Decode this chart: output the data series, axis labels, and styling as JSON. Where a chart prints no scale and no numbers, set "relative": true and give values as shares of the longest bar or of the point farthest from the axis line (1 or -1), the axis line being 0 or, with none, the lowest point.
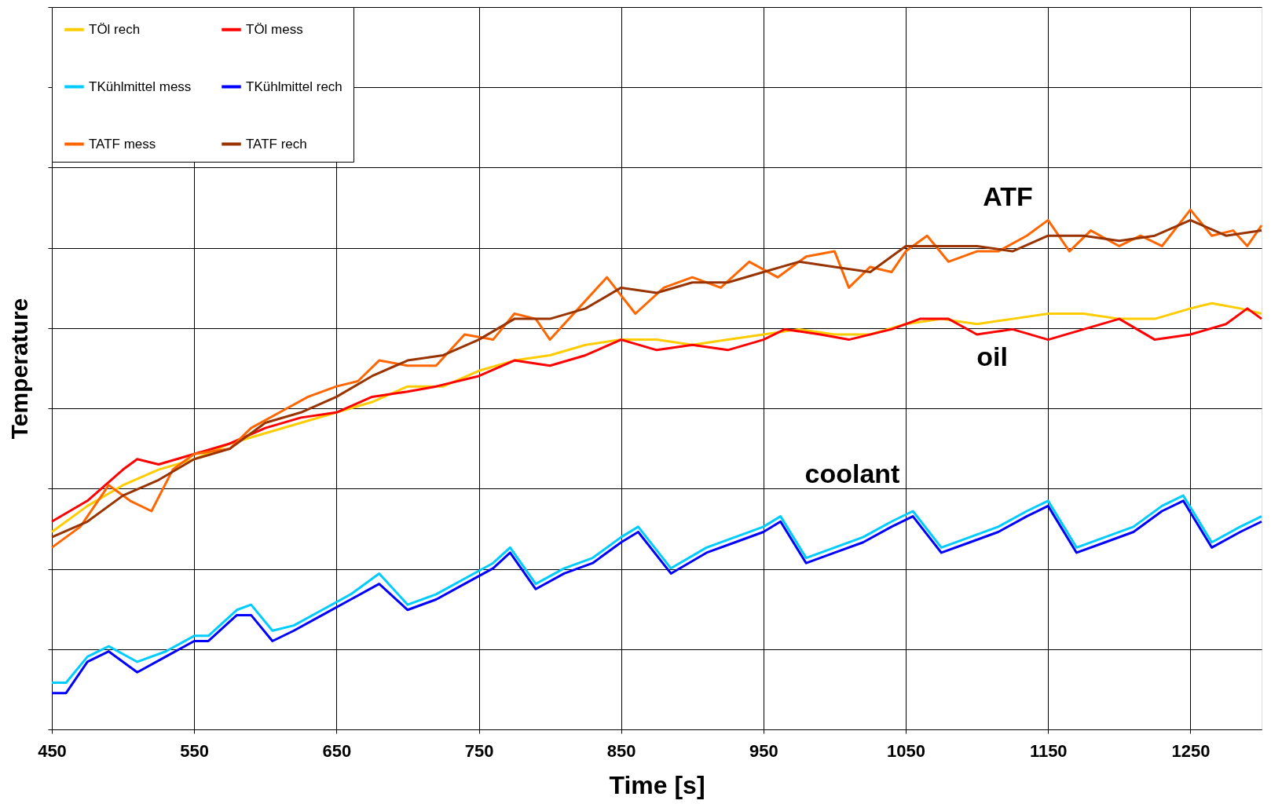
{
  "chart_data": {
    "type": "line",
    "relative": true,
    "xlabel": "Time [s]",
    "ylabel": "Temperature",
    "xlim": [
      450,
      1300
    ],
    "xticks": [
      450,
      550,
      650,
      750,
      850,
      950,
      {
        "value": 1050,
        "label": "1050"
      },
      {
        "value": 1150,
        "label": "1150"
      },
      {
        "value": 1250,
        "label": "1250"
      }
    ],
    "grid": true,
    "legend": "top left",
    "tick_labels": "x",
    "line_style": "solid",
    "marker": "none",
    "series": [
      {
        "name": "TÖl rech",
        "color": "#ffcc00",
        "x": [
          450,
          475,
          500,
          525,
          550,
          575,
          600,
          625,
          650,
          675,
          700,
          725,
          750,
          775,
          800,
          825,
          850,
          875,
          900,
          925,
          950,
          975,
          1000,
          1025,
          1050,
          1075,
          1100,
          1125,
          1150,
          1175,
          1200,
          1225,
          1250,
          1265,
          1285,
          1300
        ],
        "values": [
          0.38,
          0.43,
          0.47,
          0.5,
          0.52,
          0.55,
          0.57,
          0.59,
          0.61,
          0.63,
          0.66,
          0.66,
          0.69,
          0.71,
          0.72,
          0.74,
          0.75,
          0.75,
          0.74,
          0.75,
          0.76,
          0.77,
          0.76,
          0.76,
          0.78,
          0.79,
          0.78,
          0.79,
          0.8,
          0.8,
          0.79,
          0.79,
          0.81,
          0.82,
          0.81,
          0.8
        ]
      },
      {
        "name": "TÖl mess",
        "color": "#ff0000",
        "x": [
          450,
          475,
          500,
          510,
          525,
          550,
          575,
          600,
          625,
          650,
          675,
          700,
          720,
          750,
          775,
          800,
          825,
          850,
          875,
          900,
          925,
          950,
          965,
          990,
          1010,
          1040,
          1060,
          1080,
          1100,
          1125,
          1150,
          1175,
          1200,
          1225,
          1250,
          1275,
          1290,
          1300
        ],
        "values": [
          0.4,
          0.44,
          0.5,
          0.52,
          0.51,
          0.53,
          0.55,
          0.58,
          0.6,
          0.61,
          0.64,
          0.65,
          0.66,
          0.68,
          0.71,
          0.7,
          0.72,
          0.75,
          0.73,
          0.74,
          0.73,
          0.75,
          0.77,
          0.76,
          0.75,
          0.77,
          0.79,
          0.79,
          0.76,
          0.77,
          0.75,
          0.77,
          0.79,
          0.75,
          0.76,
          0.78,
          0.81,
          0.79
        ]
      },
      {
        "name": "TKühlmittel mess",
        "color": "#00ccff",
        "x": [
          450,
          460,
          475,
          490,
          510,
          530,
          550,
          560,
          580,
          590,
          605,
          620,
          640,
          660,
          680,
          700,
          720,
          740,
          760,
          772,
          790,
          810,
          830,
          850,
          862,
          885,
          910,
          930,
          950,
          962,
          980,
          1000,
          1020,
          1040,
          1055,
          1075,
          1095,
          1115,
          1135,
          1150,
          1170,
          1190,
          1210,
          1230,
          1245,
          1265,
          1285,
          1300
        ],
        "values": [
          0.09,
          0.09,
          0.14,
          0.16,
          0.13,
          0.15,
          0.18,
          0.18,
          0.23,
          0.24,
          0.19,
          0.2,
          0.23,
          0.26,
          0.3,
          0.24,
          0.26,
          0.29,
          0.32,
          0.35,
          0.28,
          0.31,
          0.33,
          0.37,
          0.39,
          0.31,
          0.35,
          0.37,
          0.39,
          0.41,
          0.33,
          0.35,
          0.37,
          0.4,
          0.42,
          0.35,
          0.37,
          0.39,
          0.42,
          0.44,
          0.35,
          0.37,
          0.39,
          0.43,
          0.45,
          0.36,
          0.39,
          0.41
        ]
      },
      {
        "name": "TKühlmittel rech",
        "color": "#0000ff",
        "x": [
          450,
          460,
          475,
          490,
          510,
          530,
          550,
          560,
          580,
          590,
          605,
          620,
          640,
          660,
          680,
          700,
          720,
          740,
          760,
          772,
          790,
          810,
          830,
          850,
          862,
          885,
          910,
          930,
          950,
          962,
          980,
          1000,
          1020,
          1040,
          1055,
          1075,
          1095,
          1115,
          1135,
          1150,
          1170,
          1190,
          1210,
          1230,
          1245,
          1265,
          1285,
          1300
        ],
        "values": [
          0.07,
          0.07,
          0.13,
          0.15,
          0.11,
          0.14,
          0.17,
          0.17,
          0.22,
          0.22,
          0.17,
          0.19,
          0.22,
          0.25,
          0.28,
          0.23,
          0.25,
          0.28,
          0.31,
          0.34,
          0.27,
          0.3,
          0.32,
          0.36,
          0.38,
          0.3,
          0.34,
          0.36,
          0.38,
          0.4,
          0.32,
          0.34,
          0.36,
          0.39,
          0.41,
          0.34,
          0.36,
          0.38,
          0.41,
          0.43,
          0.34,
          0.36,
          0.38,
          0.42,
          0.44,
          0.35,
          0.38,
          0.4
        ]
      },
      {
        "name": "TATF mess",
        "color": "#ff6600",
        "x": [
          450,
          470,
          490,
          505,
          520,
          535,
          550,
          575,
          590,
          610,
          630,
          650,
          665,
          680,
          700,
          720,
          740,
          760,
          775,
          790,
          800,
          820,
          840,
          860,
          880,
          900,
          920,
          940,
          960,
          980,
          1000,
          1010,
          1025,
          1040,
          1050,
          1065,
          1080,
          1100,
          1115,
          1135,
          1150,
          1165,
          1180,
          1200,
          1215,
          1230,
          1250,
          1265,
          1280,
          1290,
          1300
        ],
        "values": [
          0.35,
          0.39,
          0.47,
          0.44,
          0.42,
          0.5,
          0.53,
          0.54,
          0.58,
          0.61,
          0.64,
          0.66,
          0.67,
          0.71,
          0.7,
          0.7,
          0.76,
          0.75,
          0.8,
          0.79,
          0.75,
          0.81,
          0.87,
          0.8,
          0.85,
          0.87,
          0.85,
          0.9,
          0.87,
          0.91,
          0.92,
          0.85,
          0.89,
          0.88,
          0.92,
          0.95,
          0.9,
          0.92,
          0.92,
          0.95,
          0.98,
          0.92,
          0.96,
          0.93,
          0.95,
          0.93,
          1.0,
          0.95,
          0.96,
          0.93,
          0.97
        ]
      },
      {
        "name": "TATF rech",
        "color": "#993300",
        "x": [
          450,
          475,
          500,
          525,
          550,
          575,
          600,
          625,
          650,
          675,
          700,
          725,
          750,
          775,
          800,
          825,
          850,
          875,
          900,
          925,
          950,
          975,
          1000,
          1025,
          1050,
          1075,
          1100,
          1125,
          1150,
          1175,
          1200,
          1225,
          1250,
          1275,
          1300
        ],
        "values": [
          0.37,
          0.4,
          0.45,
          0.48,
          0.52,
          0.54,
          0.59,
          0.61,
          0.64,
          0.68,
          0.71,
          0.72,
          0.75,
          0.79,
          0.79,
          0.81,
          0.85,
          0.84,
          0.86,
          0.86,
          0.88,
          0.9,
          0.89,
          0.88,
          0.93,
          0.93,
          0.93,
          0.92,
          0.95,
          0.95,
          0.94,
          0.95,
          0.98,
          0.95,
          0.96
        ]
      }
    ],
    "annotations": [
      "ATF",
      "oil",
      "coolant"
    ]
  }
}
